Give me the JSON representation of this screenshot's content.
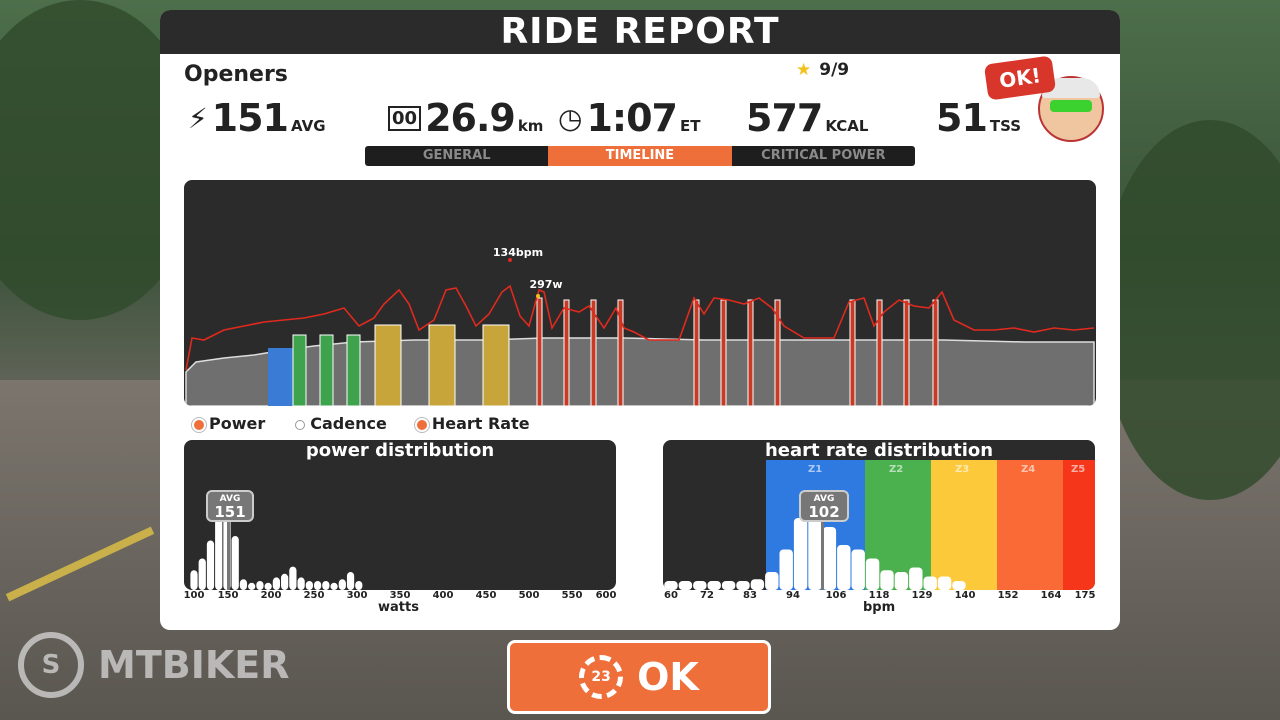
{
  "header": {
    "title": "RIDE REPORT"
  },
  "ride": {
    "name": "Openers",
    "stars": "9/9"
  },
  "stats": {
    "power": {
      "value": "151",
      "unit": "AVG"
    },
    "distance": {
      "value": "26.9",
      "unit": "km"
    },
    "time": {
      "value": "1:07",
      "unit": "ET"
    },
    "calories": {
      "value": "577",
      "unit": "KCAL"
    },
    "tss": {
      "value": "51",
      "unit": "TSS"
    }
  },
  "badge": {
    "label": "OK!"
  },
  "tabs": [
    {
      "label": "GENERAL",
      "active": false
    },
    {
      "label": "TIMELINE",
      "active": true
    },
    {
      "label": "CRITICAL POWER",
      "active": false
    }
  ],
  "timeline": {
    "hr_peak_label": "134bpm",
    "power_peak_label": "297w",
    "zone_colors": {
      "blue": "#3a7bd5",
      "green": "#3fa34d",
      "yellow": "#c8a53a",
      "red": "#c73a24"
    }
  },
  "legend": {
    "power": "Power",
    "cadence": "Cadence",
    "heart_rate": "Heart Rate"
  },
  "power_distribution": {
    "title": "power distribution",
    "avg_label": "AVG",
    "avg_value": "151",
    "ticks": [
      "100",
      "150",
      "200",
      "250",
      "300",
      "350",
      "400",
      "450",
      "500",
      "550",
      "600"
    ],
    "axis": "watts"
  },
  "hr_distribution": {
    "title": "heart rate distribution",
    "avg_label": "AVG",
    "avg_value": "102",
    "zones": [
      "Z1",
      "Z2",
      "Z3",
      "Z4",
      "Z5"
    ],
    "ticks": [
      "60",
      "72",
      "83",
      "94",
      "106",
      "118",
      "129",
      "140",
      "152",
      "164",
      "175"
    ],
    "axis": "bpm"
  },
  "ok_button": {
    "label": "OK",
    "countdown": "23"
  },
  "watermark": {
    "text": "MTBIKER"
  },
  "chart_data": [
    {
      "type": "bar",
      "title": "power distribution",
      "xlabel": "watts",
      "x": [
        100,
        110,
        120,
        130,
        140,
        150,
        160,
        170,
        180,
        190,
        200,
        210,
        220,
        230,
        240,
        250,
        260,
        270,
        280,
        290,
        300
      ],
      "values": [
        0.22,
        0.35,
        0.55,
        0.85,
        1.0,
        0.6,
        0.12,
        0.08,
        0.1,
        0.08,
        0.14,
        0.18,
        0.26,
        0.14,
        0.1,
        0.1,
        0.1,
        0.08,
        0.12,
        0.2,
        0.1
      ]
    },
    {
      "type": "bar",
      "title": "heart rate distribution",
      "xlabel": "bpm",
      "x": [
        60,
        64,
        68,
        72,
        76,
        80,
        84,
        88,
        92,
        96,
        100,
        104,
        108,
        112,
        116,
        120,
        124,
        128,
        132,
        136,
        140
      ],
      "values": [
        0.1,
        0.1,
        0.1,
        0.1,
        0.1,
        0.1,
        0.12,
        0.2,
        0.45,
        0.8,
        1.0,
        0.7,
        0.5,
        0.45,
        0.35,
        0.22,
        0.2,
        0.25,
        0.15,
        0.15,
        0.1
      ]
    }
  ]
}
